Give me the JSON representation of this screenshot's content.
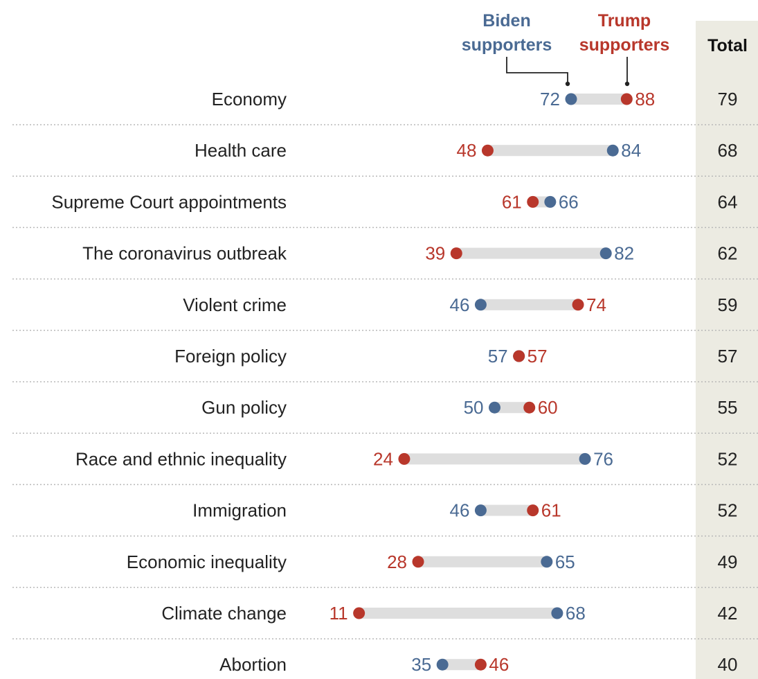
{
  "chart_data": {
    "type": "dot",
    "series": [
      {
        "name": "Biden supporters",
        "color": "#4a6a93"
      },
      {
        "name": "Trump supporters",
        "color": "#b8372b"
      }
    ],
    "total_header": "Total",
    "xlim": [
      0,
      100
    ],
    "rows": [
      {
        "label": "Economy",
        "biden": 72,
        "trump": 88,
        "total": 79
      },
      {
        "label": "Health care",
        "biden": 84,
        "trump": 48,
        "total": 68
      },
      {
        "label": "Supreme Court appointments",
        "biden": 66,
        "trump": 61,
        "total": 64
      },
      {
        "label": "The coronavirus outbreak",
        "biden": 82,
        "trump": 39,
        "total": 62
      },
      {
        "label": "Violent crime",
        "biden": 46,
        "trump": 74,
        "total": 59
      },
      {
        "label": "Foreign policy",
        "biden": 57,
        "trump": 57,
        "total": 57
      },
      {
        "label": "Gun policy",
        "biden": 50,
        "trump": 60,
        "total": 55
      },
      {
        "label": "Race and ethnic inequality",
        "biden": 76,
        "trump": 24,
        "total": 52
      },
      {
        "label": "Immigration",
        "biden": 46,
        "trump": 61,
        "total": 52
      },
      {
        "label": "Economic inequality",
        "biden": 65,
        "trump": 28,
        "total": 49
      },
      {
        "label": "Climate change",
        "biden": 68,
        "trump": 11,
        "total": 42
      },
      {
        "label": "Abortion",
        "biden": 35,
        "trump": 46,
        "total": 40
      }
    ]
  },
  "colors": {
    "biden": "#4a6a93",
    "trump": "#b8372b",
    "range_bar": "#dedede",
    "total_column_bg": "#ecebe2"
  }
}
